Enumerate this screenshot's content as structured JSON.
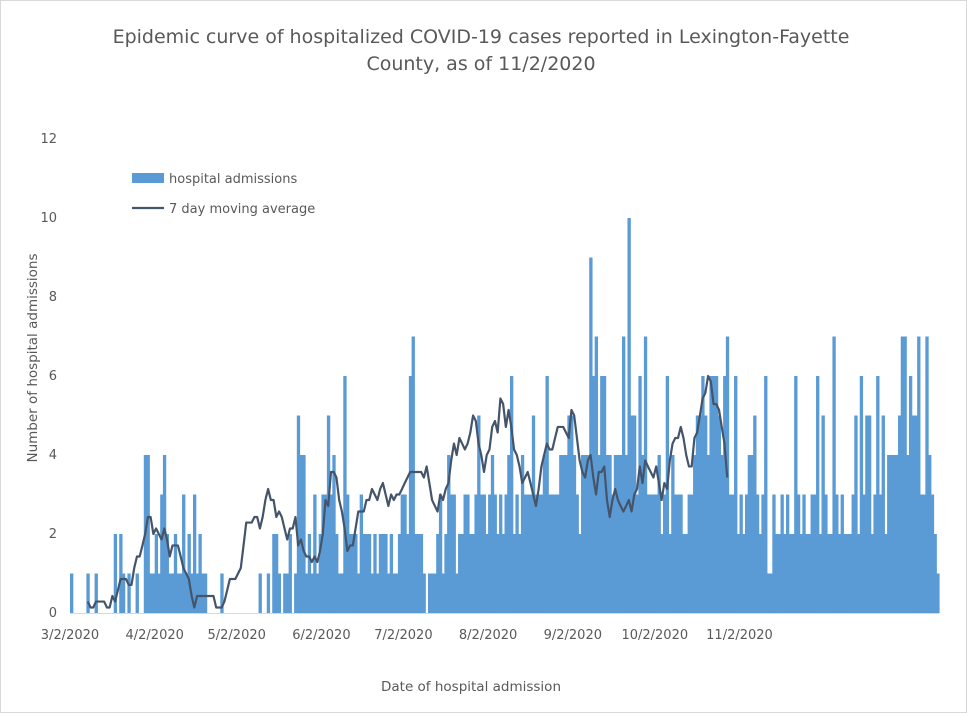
{
  "chart_data": {
    "type": "bar+line",
    "title_line1": "Epidemic curve of hospitalized COVID-19 cases reported in Lexington-Fayette",
    "title_line2": "County, as of 11/2/2020",
    "xlabel": "Date of hospital admission",
    "ylabel": "Number of hospital admissions",
    "ylim": [
      0,
      12
    ],
    "yticks": [
      "0",
      "2",
      "4",
      "6",
      "8",
      "10",
      "12"
    ],
    "xlim": [
      "3/2/2020",
      "11/2/2020"
    ],
    "xticks": [
      "3/2/2020",
      "4/2/2020",
      "5/2/2020",
      "6/2/2020",
      "7/2/2020",
      "8/2/2020",
      "9/2/2020",
      "10/2/2020",
      "11/2/2020"
    ],
    "start_date": "3/2/2020",
    "grid": false,
    "legend_position": "top-left",
    "series": [
      {
        "name": "hospital admissions",
        "kind": "bar",
        "color": "#5b9bd5",
        "values": [
          1,
          0,
          0,
          0,
          0,
          0,
          1,
          0,
          0,
          1,
          0,
          0,
          0,
          0,
          0,
          0,
          2,
          0,
          2,
          1,
          0,
          1,
          0,
          0,
          1,
          0,
          0,
          4,
          4,
          1,
          1,
          2,
          1,
          3,
          4,
          2,
          1,
          1,
          2,
          1,
          1,
          3,
          1,
          2,
          1,
          3,
          1,
          2,
          1,
          1,
          0,
          0,
          0,
          0,
          0,
          1,
          0,
          0,
          0,
          0,
          0,
          0,
          0,
          0,
          0,
          0,
          0,
          0,
          0,
          1,
          0,
          0,
          1,
          0,
          2,
          2,
          1,
          0,
          1,
          1,
          2,
          0,
          1,
          5,
          4,
          4,
          1,
          2,
          1,
          3,
          1,
          2,
          3,
          3,
          5,
          3,
          4,
          2,
          1,
          1,
          6,
          3,
          2,
          2,
          2,
          1,
          3,
          2,
          2,
          2,
          1,
          2,
          1,
          2,
          2,
          2,
          1,
          2,
          1,
          1,
          2,
          3,
          3,
          2,
          6,
          7,
          2,
          2,
          2,
          1,
          0,
          1,
          1,
          1,
          2,
          3,
          1,
          2,
          4,
          3,
          3,
          1,
          2,
          2,
          3,
          3,
          2,
          2,
          3,
          5,
          3,
          3,
          2,
          3,
          4,
          3,
          2,
          3,
          2,
          3,
          4,
          6,
          2,
          3,
          2,
          4,
          3,
          3,
          3,
          5,
          3,
          3,
          3,
          4,
          6,
          3,
          3,
          3,
          3,
          4,
          4,
          4,
          5,
          5,
          4,
          3,
          2,
          4,
          4,
          4,
          9,
          6,
          7,
          4,
          6,
          6,
          4,
          4,
          3,
          4,
          4,
          4,
          7,
          4,
          10,
          5,
          5,
          3,
          6,
          4,
          7,
          3,
          3,
          3,
          3,
          4,
          2,
          3,
          6,
          2,
          4,
          3,
          3,
          3,
          2,
          2,
          3,
          3,
          4,
          5,
          5,
          6,
          5,
          4,
          6,
          6,
          6,
          5,
          4,
          6,
          7,
          3,
          3,
          6,
          2,
          3,
          2,
          3,
          4,
          4,
          5,
          3,
          2,
          3,
          6,
          1,
          1,
          3,
          2,
          2,
          3,
          2,
          3,
          2,
          2,
          6,
          3,
          2,
          3,
          2,
          2,
          3,
          3,
          6,
          2,
          5,
          3,
          2,
          2,
          7,
          3,
          2,
          3,
          2,
          2,
          2,
          3,
          5,
          2,
          6,
          3,
          5,
          5,
          2,
          3,
          6,
          3,
          5,
          2,
          4,
          4,
          4,
          4,
          5,
          7,
          7,
          4,
          6,
          5,
          5,
          7,
          3,
          3,
          7,
          4,
          3,
          2,
          1
        ]
      },
      {
        "name": "7 day moving average",
        "kind": "line",
        "color": "#44546a",
        "start_index": 6,
        "values": [
          0.29,
          0.14,
          0.14,
          0.29,
          0.29,
          0.29,
          0.29,
          0.14,
          0.14,
          0.43,
          0.29,
          0.57,
          0.86,
          0.86,
          0.86,
          0.71,
          0.71,
          1.14,
          1.43,
          1.43,
          1.71,
          2.0,
          2.43,
          2.43,
          2.0,
          2.14,
          2.0,
          1.86,
          2.14,
          1.86,
          1.43,
          1.71,
          1.71,
          1.71,
          1.43,
          1.14,
          1.0,
          0.86,
          0.43,
          0.14,
          0.43,
          0.43,
          0.43,
          0.43,
          0.43,
          0.43,
          0.43,
          0.14,
          0.14,
          0.14,
          0.29,
          0.57,
          0.86,
          0.86,
          0.86,
          1.0,
          1.14,
          1.71,
          2.29,
          2.29,
          2.29,
          2.43,
          2.43,
          2.14,
          2.43,
          2.86,
          3.14,
          2.86,
          2.86,
          2.43,
          2.57,
          2.43,
          2.14,
          1.86,
          2.14,
          2.14,
          2.43,
          1.71,
          1.86,
          1.57,
          1.43,
          1.43,
          1.29,
          1.43,
          1.29,
          1.57,
          2.0,
          2.86,
          2.71,
          3.57,
          3.57,
          3.43,
          2.86,
          2.57,
          2.14,
          1.57,
          1.71,
          1.71,
          2.14,
          2.57,
          2.57,
          2.57,
          2.86,
          2.86,
          3.14,
          3.0,
          2.86,
          3.14,
          3.29,
          3.0,
          2.71,
          3.0,
          2.86,
          3.0,
          3.0,
          3.14,
          3.29,
          3.43,
          3.57,
          3.57,
          3.57,
          3.57,
          3.57,
          3.43,
          3.71,
          3.29,
          2.86,
          2.71,
          2.57,
          3.0,
          2.86,
          3.14,
          3.29,
          3.86,
          4.29,
          4.0,
          4.43,
          4.29,
          4.14,
          4.29,
          4.57,
          5.0,
          4.86,
          4.29,
          4.0,
          3.57,
          4.0,
          4.14,
          4.71,
          4.86,
          4.57,
          5.43,
          5.29,
          4.71,
          5.14,
          4.71,
          4.14,
          4.0,
          3.71,
          3.29,
          3.43,
          3.57,
          3.29,
          3.0,
          2.71,
          3.14,
          3.71,
          4.0,
          4.29,
          4.14,
          4.14,
          4.43,
          4.71,
          4.71,
          4.71,
          4.57,
          4.43,
          5.14,
          5.0,
          4.43,
          3.86,
          3.57,
          3.43,
          3.86,
          4.0,
          3.43,
          3.0,
          3.57,
          3.57,
          3.71,
          2.86,
          2.43,
          2.86,
          3.14,
          2.86,
          2.71,
          2.57,
          2.71,
          2.86,
          2.57,
          3.0,
          3.14,
          3.71,
          3.29,
          3.86,
          3.71,
          3.57,
          3.43,
          3.71,
          3.29,
          2.86,
          3.29,
          3.14,
          3.86,
          4.29,
          4.43,
          4.43,
          4.71,
          4.43,
          4.0,
          3.71,
          3.71,
          4.43,
          4.57,
          5.0,
          5.43,
          5.57,
          6.0,
          5.86,
          5.29,
          5.29,
          5.14,
          4.71,
          4.29,
          3.43
        ]
      }
    ]
  }
}
